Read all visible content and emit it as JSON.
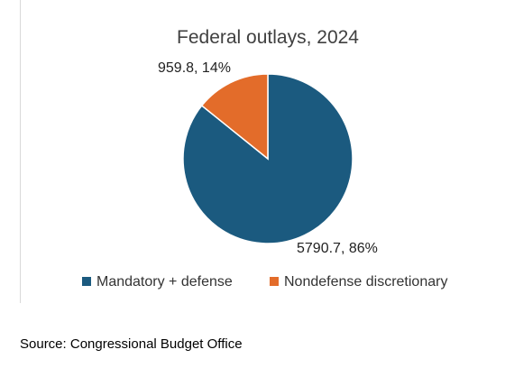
{
  "chart_data": {
    "type": "pie",
    "title": "Federal outlays, 2024",
    "slices": [
      {
        "label": "Mandatory + defense",
        "value": 5790.7,
        "percent": 86,
        "data_label": "5790.7, 86%",
        "color": "#1b5a7f"
      },
      {
        "label": "Nondefense discretionary",
        "value": 959.8,
        "percent": 14,
        "data_label": "959.8, 14%",
        "color": "#e36c2a"
      }
    ],
    "legend_position": "bottom"
  },
  "footer": {
    "source": "Source: Congressional Budget Office"
  }
}
